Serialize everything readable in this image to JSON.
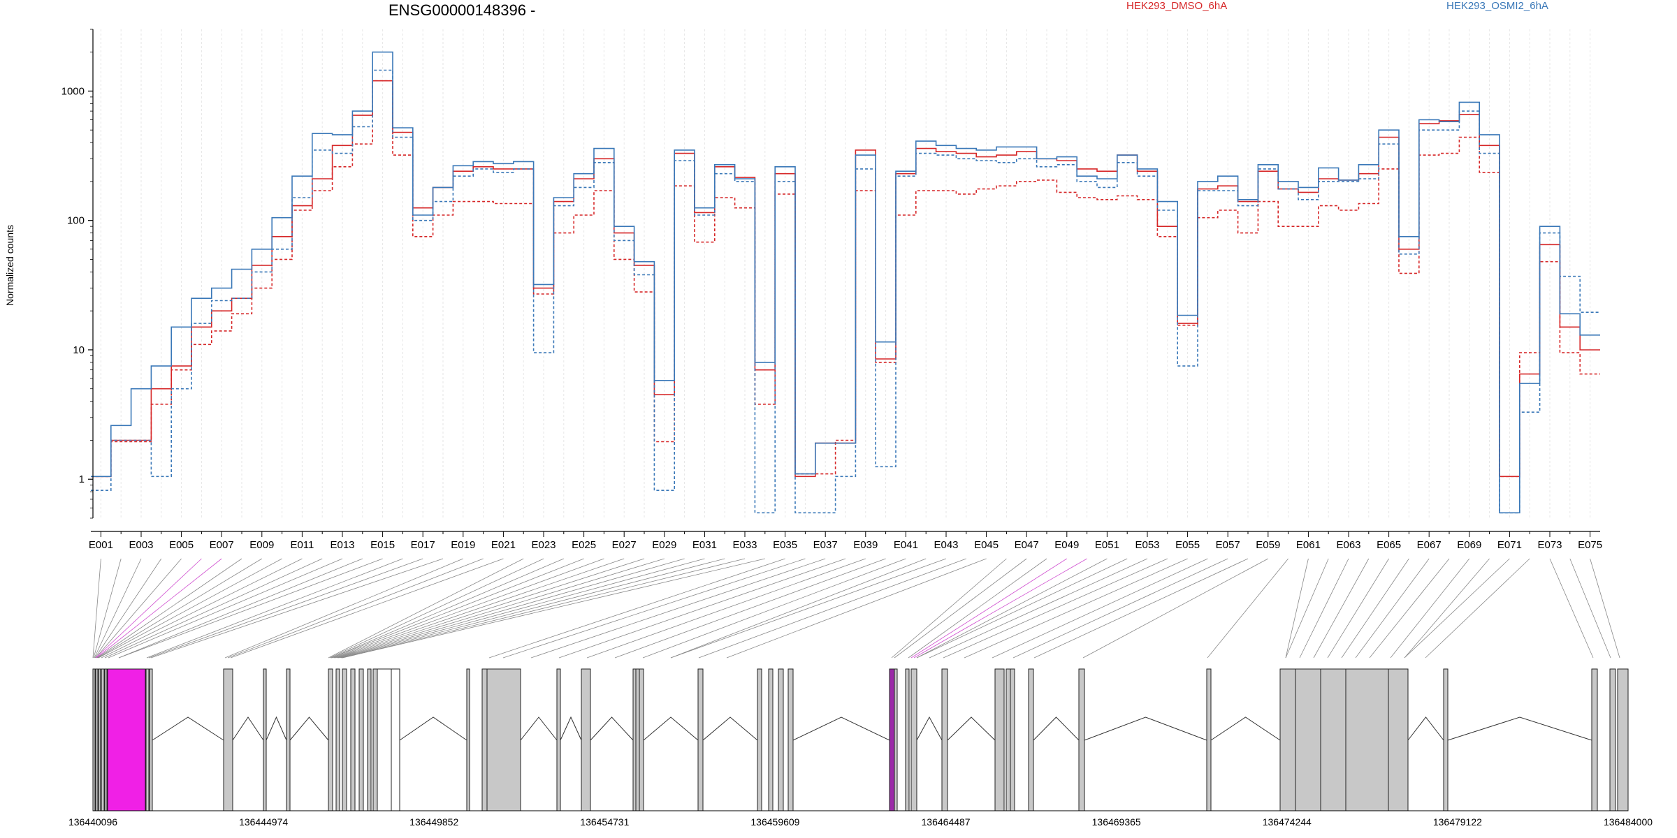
{
  "chart_data": {
    "type": "line",
    "title": "ENSG00000148396 -",
    "ylabel": "Normalized counts",
    "yscale": "log",
    "ylim": [
      0.5,
      3000
    ],
    "yticks": [
      1,
      10,
      100,
      1000
    ],
    "legend": {
      "placement": "top",
      "entries": [
        {
          "name": "HEK293_DMSO_6hA",
          "color": "#d62728"
        },
        {
          "name": "HEK293_OSMI2_6hA",
          "color": "#3a78b8"
        }
      ]
    },
    "exon_tick_labels": [
      "E001",
      "E003",
      "E005",
      "E007",
      "E009",
      "E011",
      "E013",
      "E015",
      "E017",
      "E019",
      "E021",
      "E023",
      "E025",
      "E027",
      "E029",
      "E031",
      "E033",
      "E035",
      "E037",
      "E039",
      "E041",
      "E043",
      "E045",
      "E047",
      "E049",
      "E051",
      "E053",
      "E055",
      "E057",
      "E059",
      "E061",
      "E063",
      "E065",
      "E067",
      "E069",
      "E071",
      "E073",
      "E075"
    ],
    "genomic_axis": {
      "ticks": [
        "136440096",
        "136444974",
        "136449852",
        "136454731",
        "136459609",
        "136464487",
        "136469365",
        "136474244",
        "136479122",
        "136484000"
      ],
      "start": 136440096,
      "end": 136484000
    },
    "series": [
      {
        "name": "HEK293_DMSO_6hA",
        "color": "#d62728",
        "dashed": false,
        "values": [
          1.05,
          2.0,
          2.0,
          5.0,
          7.5,
          15,
          20,
          25,
          45,
          75,
          130,
          210,
          380,
          650,
          1200,
          480,
          125,
          180,
          240,
          260,
          250,
          250,
          30,
          140,
          210,
          300,
          80,
          45,
          4.5,
          330,
          115,
          260,
          215,
          7,
          230,
          1.05,
          1.9,
          1.9,
          350,
          8.5,
          230,
          360,
          340,
          330,
          310,
          320,
          340,
          300,
          290,
          250,
          240,
          320,
          240,
          90,
          16,
          175,
          185,
          140,
          240,
          175,
          165,
          210,
          205,
          230,
          440,
          60,
          560,
          590,
          660,
          380,
          1.05,
          6.5,
          65,
          15,
          10
        ]
      },
      {
        "name": "HEK293_DMSO_6hA",
        "color": "#d62728",
        "dashed": true,
        "values": [
          1.05,
          1.95,
          1.95,
          3.8,
          7.0,
          11,
          14,
          19,
          30,
          50,
          120,
          170,
          260,
          390,
          1200,
          320,
          75,
          110,
          140,
          140,
          135,
          135,
          27,
          80,
          110,
          170,
          50,
          28,
          1.95,
          185,
          68,
          150,
          125,
          3.8,
          160,
          1.1,
          1.1,
          2.0,
          170,
          8.0,
          110,
          170,
          170,
          160,
          175,
          185,
          200,
          205,
          165,
          150,
          145,
          155,
          145,
          75,
          15.5,
          105,
          120,
          80,
          140,
          90,
          90,
          130,
          120,
          135,
          250,
          39,
          320,
          330,
          440,
          235,
          1.05,
          9.5,
          48,
          9.5,
          6.5
        ]
      },
      {
        "name": "HEK293_OSMI2_6hA",
        "color": "#3a78b8",
        "dashed": false,
        "values": [
          1.05,
          2.6,
          5.0,
          7.5,
          15,
          25,
          30,
          42,
          60,
          105,
          220,
          470,
          460,
          700,
          2000,
          520,
          110,
          180,
          265,
          285,
          275,
          285,
          32,
          150,
          230,
          360,
          90,
          48,
          5.8,
          350,
          125,
          270,
          210,
          8.0,
          260,
          1.1,
          1.9,
          1.9,
          320,
          11.5,
          240,
          410,
          380,
          360,
          350,
          370,
          370,
          300,
          310,
          220,
          210,
          320,
          250,
          140,
          18.5,
          200,
          220,
          145,
          270,
          200,
          180,
          255,
          205,
          270,
          500,
          75,
          600,
          580,
          820,
          460,
          0.55,
          5.5,
          90,
          19,
          13
        ]
      },
      {
        "name": "HEK293_OSMI2_6hA",
        "color": "#3a78b8",
        "dashed": true,
        "values": [
          0.82,
          2.0,
          2.0,
          1.05,
          5.0,
          16,
          24,
          25,
          40,
          60,
          150,
          350,
          330,
          530,
          1450,
          440,
          100,
          140,
          220,
          250,
          235,
          250,
          9.5,
          130,
          180,
          280,
          70,
          38,
          0.82,
          290,
          110,
          230,
          200,
          0.55,
          200,
          0.55,
          0.55,
          1.05,
          250,
          1.25,
          220,
          330,
          320,
          300,
          290,
          280,
          300,
          260,
          270,
          200,
          180,
          280,
          220,
          120,
          7.5,
          170,
          170,
          130,
          250,
          175,
          145,
          200,
          200,
          210,
          390,
          55,
          500,
          500,
          700,
          330,
          0.55,
          3.3,
          80,
          37,
          19.5
        ]
      }
    ],
    "gene_model": {
      "exon_count": 76
    }
  }
}
